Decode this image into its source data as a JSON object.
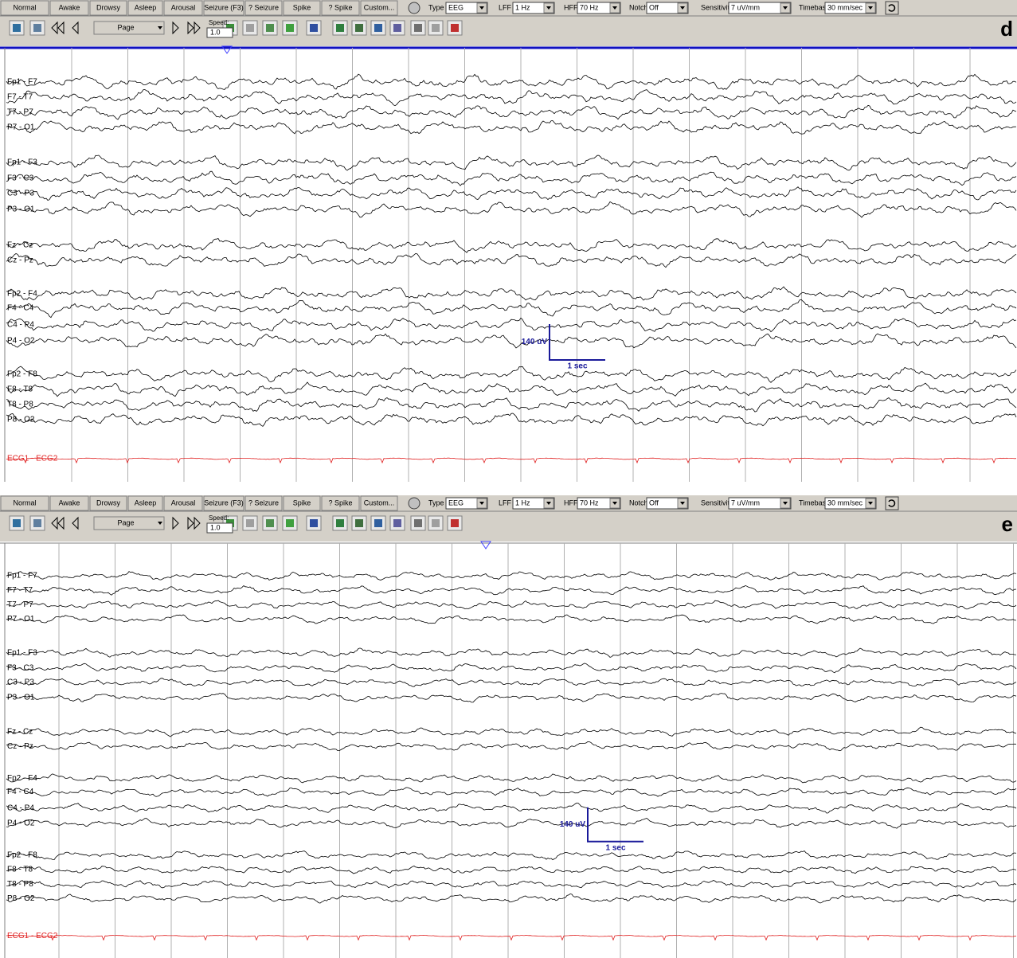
{
  "panels": [
    {
      "label": "d",
      "toolbar": {
        "buttons": [
          "Normal",
          "Awake",
          "Drowsy",
          "Asleep",
          "Arousal",
          "Seizure (F3)",
          "? Seizure",
          "Spike",
          "? Spike",
          "Custom..."
        ],
        "type_label": "Type",
        "type_value": "EEG",
        "lff_label": "LFF",
        "lff_value": "1 Hz",
        "hff_label": "HFF",
        "hff_value": "70 Hz",
        "notch_label": "Notch",
        "notch_value": "Off",
        "sensitivity_label": "Sensitivity",
        "sensitivity_value": "7 uV/mm",
        "timebase_label": "Timebase",
        "timebase_value": "30 mm/sec",
        "page_label": "Page",
        "speed_label": "Speed:",
        "speed_value": "1.0"
      },
      "channel_groups": [
        [
          "Fp1 - F7",
          "F7 - T7",
          "T7 - P7",
          "P7 - O1"
        ],
        [
          "Fp1 - F3",
          "F3 - C3",
          "C3 - P3",
          "P3 - O1"
        ],
        [
          "Fz - Cz",
          "Cz - Pz"
        ],
        [
          "Fp2 - F4",
          "F4 - C4",
          "C4 - P4",
          "P4 - O2"
        ],
        [
          "Fp2 - F8",
          "F8 - T8",
          "T8 - P8",
          "P8 - O2"
        ],
        [
          "ECG1 - ECG2"
        ]
      ],
      "calibration": {
        "amplitude": "140 uV",
        "time": "1 sec"
      }
    },
    {
      "label": "e",
      "toolbar": {
        "buttons": [
          "Normal",
          "Awake",
          "Drowsy",
          "Asleep",
          "Arousal",
          "Seizure (F3)",
          "? Seizure",
          "Spike",
          "? Spike",
          "Custom..."
        ],
        "type_label": "Type",
        "type_value": "EEG",
        "lff_label": "LFF",
        "lff_value": "1 Hz",
        "hff_label": "HFF",
        "hff_value": "70 Hz",
        "notch_label": "Notch",
        "notch_value": "Off",
        "sensitivity_label": "Sensitivity",
        "sensitivity_value": "7 uV/mm",
        "timebase_label": "Timebase",
        "timebase_value": "30 mm/sec",
        "page_label": "Page",
        "speed_label": "Speed:",
        "speed_value": "1.0"
      },
      "channel_groups": [
        [
          "Fp1 - F7",
          "F7 - T7",
          "T7 - P7",
          "P7 - O1"
        ],
        [
          "Fp1 - F3",
          "F3 - C3",
          "C3 - P3",
          "P3 - O1"
        ],
        [
          "Fz - Cz",
          "Cz - Pz"
        ],
        [
          "Fp2 - F4",
          "F4 - C4",
          "C4 - P4",
          "P4 - O2"
        ],
        [
          "Fp2 - F8",
          "F8 - T8",
          "T8 - P8",
          "P8 - O2"
        ],
        [
          "ECG1 - ECG2"
        ]
      ],
      "calibration": {
        "amplitude": "140 uV",
        "time": "1 sec"
      }
    }
  ]
}
